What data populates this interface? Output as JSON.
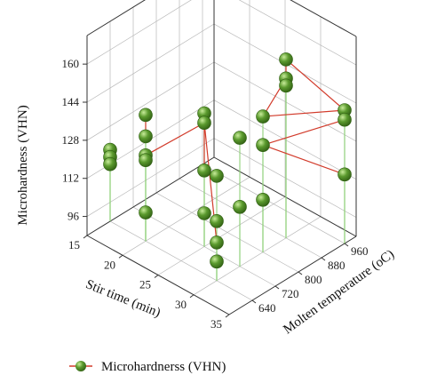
{
  "chart_data": {
    "type": "scatter3d",
    "title": "",
    "xlabel": "Stir time (min)",
    "ylabel": "Molten temperature (oC)",
    "zlabel": "Microhardness (VHN)",
    "xlim": [
      15,
      35
    ],
    "ylim": [
      560,
      1000
    ],
    "zlim": [
      88,
      172
    ],
    "x_ticks": [
      15,
      20,
      25,
      30,
      35
    ],
    "y_ticks": [
      640,
      720,
      800,
      880,
      960
    ],
    "z_ticks": [
      96,
      112,
      128,
      144,
      160
    ],
    "grid": true,
    "legend": {
      "position": "bottom",
      "entries": [
        "Microhardnerss (VHN)"
      ]
    },
    "colors": {
      "marker": "#5b9a2e",
      "marker_light": "#c8ec9a",
      "marker_dark": "#2f5e12",
      "drop_line": "#8fd07a",
      "connect_line": "#d23b2b",
      "wall_grid": "#b8b8b8"
    },
    "series": [
      {
        "name": "Microhardnerss (VHN)",
        "points": [
          {
            "x": 15,
            "y": 640,
            "z": 112
          },
          {
            "x": 15,
            "y": 640,
            "z": 115
          },
          {
            "x": 15,
            "y": 640,
            "z": 118
          },
          {
            "x": 20,
            "y": 640,
            "z": 100
          },
          {
            "x": 20,
            "y": 640,
            "z": 122
          },
          {
            "x": 20,
            "y": 640,
            "z": 124
          },
          {
            "x": 20,
            "y": 640,
            "z": 132
          },
          {
            "x": 20,
            "y": 640,
            "z": 141
          },
          {
            "x": 25,
            "y": 720,
            "z": 102
          },
          {
            "x": 25,
            "y": 720,
            "z": 120
          },
          {
            "x": 25,
            "y": 720,
            "z": 140
          },
          {
            "x": 25,
            "y": 720,
            "z": 144
          },
          {
            "x": 30,
            "y": 640,
            "z": 96
          },
          {
            "x": 30,
            "y": 640,
            "z": 104
          },
          {
            "x": 30,
            "y": 640,
            "z": 113
          },
          {
            "x": 30,
            "y": 640,
            "z": 132
          },
          {
            "x": 30,
            "y": 720,
            "z": 142
          },
          {
            "x": 30,
            "y": 720,
            "z": 113
          },
          {
            "x": 30,
            "y": 800,
            "z": 110
          },
          {
            "x": 30,
            "y": 800,
            "z": 133
          },
          {
            "x": 30,
            "y": 800,
            "z": 145
          },
          {
            "x": 30,
            "y": 880,
            "z": 152
          },
          {
            "x": 30,
            "y": 880,
            "z": 155
          },
          {
            "x": 30,
            "y": 880,
            "z": 163
          },
          {
            "x": 35,
            "y": 960,
            "z": 117
          },
          {
            "x": 35,
            "y": 960,
            "z": 140
          },
          {
            "x": 35,
            "y": 960,
            "z": 144
          }
        ],
        "connections": [
          [
            24,
            19
          ],
          [
            19,
            25
          ],
          [
            25,
            26
          ],
          [
            26,
            20
          ],
          [
            20,
            22
          ],
          [
            22,
            21
          ],
          [
            21,
            23
          ],
          [
            23,
            26
          ],
          [
            5,
            10
          ],
          [
            10,
            13
          ],
          [
            6,
            7
          ],
          [
            9,
            11
          ]
        ]
      }
    ]
  }
}
